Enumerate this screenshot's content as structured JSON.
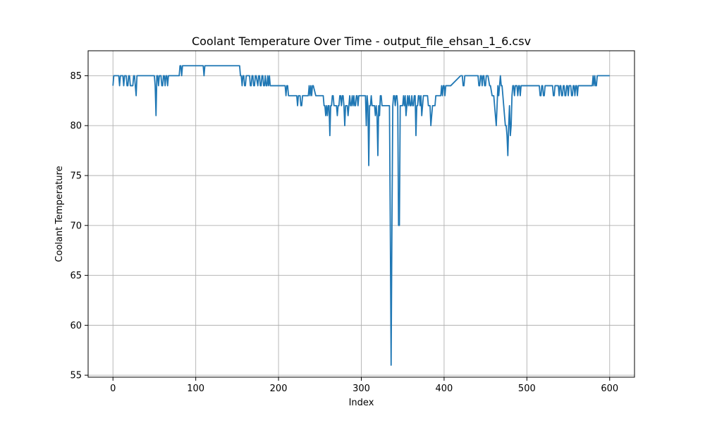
{
  "chart_data": {
    "type": "line",
    "title": "Coolant Temperature Over Time - output_file_ehsan_1_6.csv",
    "xlabel": "Index",
    "ylabel": "Coolant Temperature",
    "xlim": [
      -30,
      630
    ],
    "ylim": [
      54.8,
      87.5
    ],
    "xticks": [
      0,
      100,
      200,
      300,
      400,
      500,
      600
    ],
    "yticks": [
      55,
      60,
      65,
      70,
      75,
      80,
      85
    ],
    "grid": true,
    "line_color": "#1f77b4",
    "series": [
      {
        "x": [
          0,
          1,
          2,
          5,
          7,
          8,
          9,
          10,
          11,
          12,
          13,
          14,
          16,
          17,
          18,
          19,
          20,
          21,
          22,
          23,
          24,
          25,
          26,
          27,
          28,
          29,
          40,
          45,
          50,
          51,
          52,
          53,
          54,
          55,
          56,
          57,
          58,
          59,
          60,
          61,
          62,
          63,
          64,
          65,
          66,
          67,
          68,
          69,
          70,
          75,
          80,
          81,
          82,
          83,
          84,
          85,
          108,
          109,
          110,
          111,
          112,
          113,
          150,
          153,
          154,
          155,
          156,
          157,
          158,
          159,
          160,
          161,
          165,
          166,
          167,
          168,
          169,
          170,
          171,
          172,
          173,
          175,
          176,
          177,
          178,
          179,
          180,
          181,
          182,
          183,
          184,
          185,
          186,
          187,
          188,
          189,
          190,
          191,
          192,
          193,
          200,
          205,
          208,
          209,
          210,
          211,
          212,
          213,
          215,
          220,
          222,
          223,
          224,
          225,
          226,
          227,
          228,
          229,
          235,
          236,
          237,
          238,
          239,
          240,
          241,
          242,
          245,
          248,
          252,
          253,
          254,
          255,
          256,
          257,
          258,
          259,
          260,
          261,
          262,
          263,
          264,
          265,
          266,
          267,
          268,
          269,
          270,
          271,
          272,
          273,
          274,
          275,
          276,
          277,
          278,
          279,
          280,
          281,
          282,
          283,
          284,
          285,
          286,
          287,
          288,
          289,
          290,
          291,
          292,
          293,
          294,
          295,
          296,
          297,
          298,
          299,
          300,
          301,
          305,
          306,
          307,
          308,
          309,
          310,
          311,
          312,
          313,
          314,
          315,
          316,
          317,
          318,
          319,
          320,
          321,
          322,
          323,
          324,
          325,
          326,
          327,
          328,
          329,
          330,
          331,
          332,
          333,
          334,
          335,
          336,
          337,
          338,
          339,
          340,
          341,
          342,
          343,
          344,
          345,
          346,
          347,
          348,
          349,
          350,
          351,
          352,
          353,
          354,
          355,
          356,
          357,
          358,
          359,
          360,
          361,
          362,
          363,
          364,
          365,
          366,
          367,
          368,
          369,
          370,
          371,
          372,
          373,
          374,
          375,
          376,
          377,
          378,
          379,
          380,
          381,
          382,
          383,
          384,
          385,
          386,
          387,
          388,
          389,
          390,
          391,
          392,
          393,
          394,
          395,
          396,
          397,
          398,
          399,
          400,
          401,
          402,
          403,
          404,
          405,
          406,
          407,
          408,
          420,
          421,
          422,
          423,
          424,
          425,
          426,
          427,
          428,
          429,
          430,
          431,
          432,
          433,
          434,
          435,
          440,
          441,
          442,
          443,
          444,
          445,
          446,
          447,
          448,
          449,
          450,
          451,
          452,
          453,
          455,
          456,
          458,
          460,
          461,
          462,
          463,
          464,
          465,
          466,
          467,
          468,
          469,
          470,
          471,
          472,
          473,
          474,
          475,
          476,
          477,
          478,
          479,
          480,
          481,
          482,
          483,
          484,
          485,
          486,
          487,
          488,
          489,
          490,
          491,
          492,
          493,
          494,
          495,
          500,
          505,
          510,
          511,
          512,
          513,
          514,
          515,
          516,
          517,
          518,
          519,
          520,
          521,
          522,
          523,
          524,
          525,
          526,
          527,
          528,
          529,
          530,
          531,
          532,
          533,
          534,
          535,
          536,
          537,
          538,
          539,
          540,
          541,
          542,
          543,
          544,
          545,
          546,
          547,
          548,
          549,
          550,
          551,
          552,
          553,
          554,
          555,
          556,
          557,
          558,
          559,
          560,
          561,
          562,
          563,
          564,
          565,
          570,
          575,
          578,
          579,
          580,
          581,
          582,
          583,
          584,
          585,
          586,
          590,
          595,
          600
        ],
        "y": [
          84,
          85,
          85,
          85,
          85,
          84,
          85,
          85,
          85,
          85,
          84,
          85,
          85,
          84,
          84,
          85,
          85,
          84,
          84,
          84,
          84,
          85,
          85,
          84,
          83,
          85,
          85,
          85,
          85,
          84,
          81,
          85,
          85,
          84,
          85,
          85,
          85,
          84,
          84,
          85,
          85,
          84,
          85,
          85,
          84,
          85,
          85,
          85,
          85,
          85,
          85,
          86,
          86,
          85,
          86,
          86,
          86,
          86,
          85,
          86,
          86,
          86,
          86,
          86,
          85,
          85,
          84,
          85,
          85,
          84,
          84,
          85,
          85,
          84,
          84,
          85,
          85,
          84,
          84,
          85,
          85,
          84,
          85,
          85,
          84,
          84,
          85,
          85,
          84,
          84,
          85,
          84,
          84,
          85,
          84,
          85,
          84,
          84,
          84,
          84,
          84,
          84,
          84,
          83,
          84,
          84,
          83,
          83,
          83,
          83,
          83,
          82,
          83,
          83,
          83,
          82,
          82,
          83,
          83,
          83,
          84,
          83,
          84,
          83,
          84,
          84,
          83,
          83,
          83,
          83,
          83,
          82,
          82,
          81,
          82,
          81,
          82,
          82,
          79,
          82,
          82,
          83,
          83,
          82,
          82,
          82,
          82,
          81,
          82,
          82,
          83,
          83,
          82,
          83,
          83,
          82,
          80,
          82,
          82,
          82,
          81,
          82,
          83,
          82,
          82,
          83,
          82,
          83,
          82,
          82,
          83,
          83,
          82,
          83,
          83,
          83,
          83,
          83,
          83,
          80,
          83,
          82,
          76,
          82,
          82,
          83,
          82,
          82,
          82,
          82,
          81,
          82,
          81,
          77,
          82,
          81,
          83,
          83,
          82,
          82,
          82,
          82,
          82,
          82,
          82,
          82,
          82,
          82,
          70,
          56,
          70,
          82,
          83,
          83,
          82,
          83,
          83,
          82,
          70,
          70,
          82,
          82,
          82,
          82,
          83,
          82,
          83,
          81,
          82,
          83,
          82,
          83,
          82,
          82,
          83,
          82,
          82,
          83,
          83,
          79,
          82,
          82,
          83,
          83,
          82,
          83,
          81,
          82,
          83,
          83,
          83,
          83,
          83,
          83,
          82,
          82,
          82,
          80,
          81,
          82,
          82,
          82,
          82,
          83,
          83,
          83,
          83,
          83,
          83,
          83,
          84,
          83,
          84,
          84,
          83,
          84,
          84,
          84,
          84,
          84,
          84,
          84,
          85,
          85,
          85,
          84,
          84,
          85,
          85,
          85,
          85,
          85,
          85,
          85,
          85,
          85,
          85,
          85,
          85,
          85,
          84,
          84,
          85,
          85,
          84,
          85,
          85,
          84,
          84,
          85,
          85,
          85,
          84,
          84,
          83,
          83,
          82,
          81,
          80,
          82,
          84,
          83,
          84,
          85,
          84,
          84,
          83,
          82,
          81,
          80,
          80,
          79,
          77,
          80,
          82,
          79,
          80,
          83,
          84,
          84,
          83,
          84,
          84,
          84,
          83,
          84,
          84,
          83,
          84,
          84,
          84,
          84,
          84,
          84,
          84,
          84,
          84,
          84,
          84,
          83,
          83,
          84,
          84,
          83,
          83,
          84,
          84,
          84,
          84,
          84,
          84,
          84,
          84,
          84,
          84,
          83,
          83,
          84,
          84,
          84,
          84,
          84,
          83,
          84,
          84,
          83,
          83,
          84,
          84,
          83,
          83,
          84,
          84,
          83,
          84,
          84,
          84,
          83,
          83,
          84,
          84,
          83,
          84,
          84,
          83,
          84,
          84,
          84,
          84,
          84,
          84,
          84,
          84,
          85,
          84,
          85,
          84,
          84,
          85,
          85,
          85,
          85,
          85
        ]
      }
    ]
  }
}
